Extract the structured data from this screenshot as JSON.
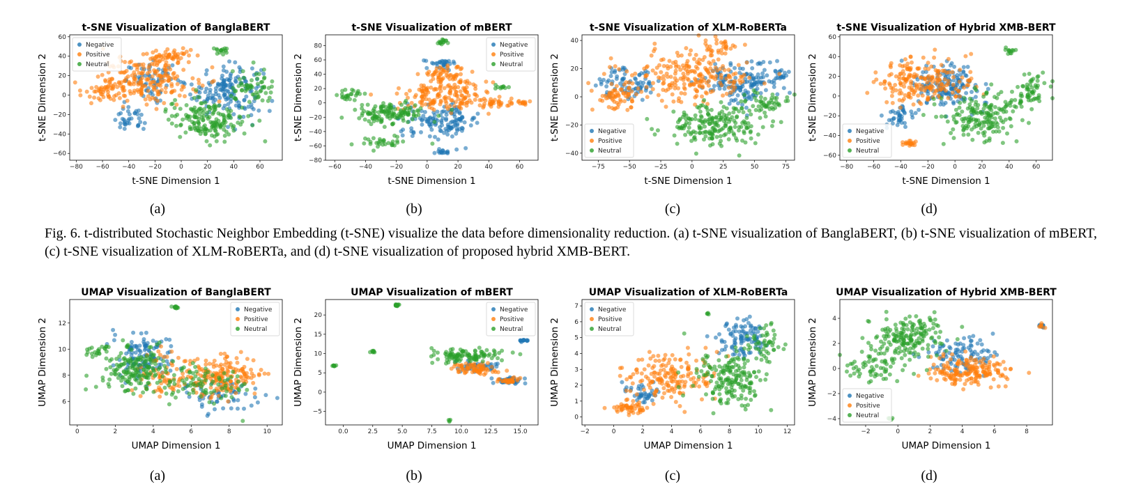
{
  "colors": {
    "negative": "#1f77b4",
    "positive": "#ff7f0e",
    "neutral": "#2ca02c"
  },
  "caption": "Fig. 6.  t-distributed Stochastic Neighbor Embedding (t-SNE) visualize the data before dimensionality reduction. (a) t-SNE visualization of BanglaBERT, (b) t-SNE visualization of mBERT, (c) t-SNE visualization of XLM-RoBERTa, and (d) t-SNE visualization of proposed hybrid XMB-BERT.",
  "sublabels_top": [
    "(a)",
    "(b)",
    "(c)",
    "(d)"
  ],
  "sublabels_bottom": [
    "(a)",
    "(b)",
    "(c)",
    "(d)"
  ],
  "chart_data": [
    {
      "type": "scatter",
      "title": "t-SNE Visualization of BanglaBERT",
      "xlabel": "t-SNE Dimension 1",
      "ylabel": "t-SNE Dimension 2",
      "xlim": [
        -85,
        77
      ],
      "ylim": [
        -67,
        62
      ],
      "xticks": [
        -80,
        -60,
        -40,
        -20,
        0,
        20,
        40,
        60
      ],
      "xtick_labels": [
        "−80",
        "−60",
        "−40",
        "−20",
        "0",
        "20",
        "40",
        "60"
      ],
      "yticks": [
        -60,
        -40,
        -20,
        0,
        20,
        40,
        60
      ],
      "ytick_labels": [
        "−60",
        "−40",
        "−20",
        "0",
        "20",
        "40",
        "60"
      ],
      "legend": [
        "Negative",
        "Positive",
        "Neutral"
      ],
      "legend_loc": "upper-left",
      "series": [
        {
          "name": "Negative",
          "clusters": [
            [
              35,
              5,
              22,
              22,
              160
            ],
            [
              -20,
              15,
              18,
              15,
              60
            ],
            [
              -40,
              -25,
              10,
              10,
              35
            ]
          ]
        },
        {
          "name": "Positive",
          "clusters": [
            [
              -25,
              15,
              30,
              20,
              200
            ],
            [
              -10,
              40,
              15,
              8,
              50
            ],
            [
              -60,
              5,
              12,
              10,
              40
            ]
          ]
        },
        {
          "name": "Neutral",
          "clusters": [
            [
              20,
              -25,
              25,
              18,
              170
            ],
            [
              55,
              5,
              15,
              15,
              60
            ],
            [
              30,
              45,
              5,
              3,
              15
            ]
          ]
        }
      ]
    },
    {
      "type": "scatter",
      "title": "t-SNE Visualization of mBERT",
      "xlabel": "t-SNE Dimension 1",
      "ylabel": "t-SNE Dimension 2",
      "xlim": [
        -66,
        72
      ],
      "ylim": [
        -80,
        95
      ],
      "xticks": [
        -60,
        -40,
        -20,
        0,
        20,
        40,
        60
      ],
      "xtick_labels": [
        "−60",
        "−40",
        "−20",
        "0",
        "20",
        "40",
        "60"
      ],
      "yticks": [
        -80,
        -60,
        -40,
        -20,
        0,
        20,
        40,
        60,
        80
      ],
      "ytick_labels": [
        "−80",
        "−60",
        "−40",
        "−20",
        "0",
        "20",
        "40",
        "60",
        "80"
      ],
      "legend": [
        "Negative",
        "Positive",
        "Neutral"
      ],
      "legend_loc": "upper-right",
      "series": [
        {
          "name": "Negative",
          "clusters": [
            [
              10,
              -25,
              20,
              18,
              130
            ],
            [
              10,
              55,
              10,
              6,
              30
            ],
            [
              10,
              -68,
              5,
              3,
              15
            ]
          ]
        },
        {
          "name": "Positive",
          "clusters": [
            [
              10,
              10,
              25,
              20,
              170
            ],
            [
              12,
              40,
              12,
              10,
              50
            ],
            [
              45,
              0,
              12,
              4,
              30
            ],
            [
              63,
              0,
              4,
              2,
              12
            ]
          ]
        },
        {
          "name": "Neutral",
          "clusters": [
            [
              -25,
              -15,
              18,
              14,
              130
            ],
            [
              -50,
              10,
              6,
              6,
              25
            ],
            [
              10,
              85,
              4,
              3,
              15
            ],
            [
              48,
              22,
              4,
              2,
              10
            ],
            [
              -30,
              -55,
              15,
              6,
              30
            ]
          ]
        }
      ]
    },
    {
      "type": "scatter",
      "title": "t-SNE Visualization of XLM-RoBERTa",
      "xlabel": "t-SNE Dimension 1",
      "ylabel": "t-SNE Dimension 2",
      "xlim": [
        -88,
        82
      ],
      "ylim": [
        -45,
        44
      ],
      "xticks": [
        -75,
        -50,
        -25,
        0,
        25,
        50,
        75
      ],
      "xtick_labels": [
        "−75",
        "−50",
        "−25",
        "0",
        "25",
        "50",
        "75"
      ],
      "yticks": [
        -40,
        -20,
        0,
        20,
        40
      ],
      "ytick_labels": [
        "−40",
        "−20",
        "0",
        "20",
        "40"
      ],
      "legend": [
        "Negative",
        "Positive",
        "Neutral"
      ],
      "legend_loc": "lower-left",
      "series": [
        {
          "name": "Negative",
          "clusters": [
            [
              40,
              10,
              25,
              12,
              150
            ],
            [
              -50,
              10,
              20,
              10,
              80
            ],
            [
              70,
              15,
              6,
              5,
              20
            ]
          ]
        },
        {
          "name": "Positive",
          "clusters": [
            [
              0,
              15,
              40,
              15,
              220
            ],
            [
              20,
              35,
              10,
              4,
              30
            ],
            [
              -60,
              0,
              15,
              8,
              60
            ]
          ]
        },
        {
          "name": "Neutral",
          "clusters": [
            [
              15,
              -20,
              30,
              12,
              200
            ],
            [
              60,
              -5,
              15,
              8,
              50
            ]
          ]
        }
      ]
    },
    {
      "type": "scatter",
      "title": "t-SNE Visualization of Hybrid XMB-BERT",
      "xlabel": "t-SNE Dimension 1",
      "ylabel": "t-SNE Dimension 2",
      "xlim": [
        -85,
        72
      ],
      "ylim": [
        -65,
        62
      ],
      "xticks": [
        -80,
        -60,
        -40,
        -20,
        0,
        20,
        40,
        60
      ],
      "xtick_labels": [
        "−80",
        "−60",
        "−40",
        "−20",
        "0",
        "20",
        "40",
        "60"
      ],
      "yticks": [
        -60,
        -40,
        -20,
        0,
        20,
        40,
        60
      ],
      "ytick_labels": [
        "−60",
        "−40",
        "−20",
        "0",
        "20",
        "40",
        "60"
      ],
      "legend": [
        "Negative",
        "Positive",
        "Neutral"
      ],
      "legend_loc": "lower-left",
      "series": [
        {
          "name": "Negative",
          "clusters": [
            [
              -5,
              10,
              20,
              20,
              160
            ],
            [
              -40,
              -20,
              10,
              10,
              40
            ]
          ]
        },
        {
          "name": "Positive",
          "clusters": [
            [
              -25,
              15,
              30,
              20,
              200
            ],
            [
              -35,
              -48,
              5,
              3,
              20
            ]
          ]
        },
        {
          "name": "Neutral",
          "clusters": [
            [
              20,
              -20,
              25,
              20,
              180
            ],
            [
              55,
              5,
              12,
              15,
              60
            ],
            [
              40,
              45,
              4,
              3,
              12
            ]
          ]
        }
      ]
    },
    {
      "type": "scatter",
      "title": "UMAP Visualization of BanglaBERT",
      "xlabel": "UMAP Dimension 1",
      "ylabel": "UMAP Dimension 2",
      "xlim": [
        -0.4,
        10.8
      ],
      "ylim": [
        4.2,
        13.8
      ],
      "xticks": [
        0,
        2,
        4,
        6,
        8,
        10
      ],
      "xtick_labels": [
        "0",
        "2",
        "4",
        "6",
        "8",
        "10"
      ],
      "yticks": [
        6,
        8,
        10,
        12
      ],
      "ytick_labels": [
        "6",
        "8",
        "10",
        "12"
      ],
      "legend": [
        "Negative",
        "Positive",
        "Neutral"
      ],
      "legend_loc": "upper-right",
      "series": [
        {
          "name": "Negative",
          "clusters": [
            [
              3.5,
              9.5,
              1.2,
              1.4,
              120
            ],
            [
              7.5,
              6.5,
              1.5,
              1.0,
              60
            ]
          ]
        },
        {
          "name": "Positive",
          "clusters": [
            [
              7.5,
              8,
              1.8,
              1.3,
              180
            ],
            [
              4.5,
              8,
              1,
              1.5,
              60
            ]
          ]
        },
        {
          "name": "Neutral",
          "clusters": [
            [
              3,
              8.5,
              1.5,
              1.5,
              170
            ],
            [
              6.5,
              7.5,
              2,
              1.2,
              80
            ],
            [
              5.2,
              13.2,
              0.15,
              0.08,
              12
            ],
            [
              1,
              10,
              0.5,
              0.4,
              20
            ]
          ]
        }
      ]
    },
    {
      "type": "scatter",
      "title": "UMAP Visualization of mBERT",
      "xlabel": "UMAP Dimension 1",
      "ylabel": "UMAP Dimension 2",
      "xlim": [
        -1.5,
        16.5
      ],
      "ylim": [
        -8.5,
        24
      ],
      "xticks": [
        0,
        2.5,
        5,
        7.5,
        10,
        12.5,
        15
      ],
      "xtick_labels": [
        "0.0",
        "2.5",
        "5.0",
        "7.5",
        "10.0",
        "12.5",
        "15.0"
      ],
      "yticks": [
        -5,
        0,
        5,
        10,
        15,
        20
      ],
      "ytick_labels": [
        "−5",
        "0",
        "5",
        "10",
        "15",
        "20"
      ],
      "legend": [
        "Negative",
        "Positive",
        "Neutral"
      ],
      "legend_loc": "upper-right",
      "series": [
        {
          "name": "Negative",
          "clusters": [
            [
              14,
              3,
              1,
              0.8,
              40
            ],
            [
              15.3,
              13.3,
              0.4,
              0.3,
              15
            ],
            [
              11.5,
              7,
              1.5,
              1.5,
              40
            ]
          ]
        },
        {
          "name": "Positive",
          "clusters": [
            [
              11,
              6,
              1.5,
              1.3,
              70
            ],
            [
              14,
              3,
              0.8,
              0.6,
              30
            ]
          ]
        },
        {
          "name": "Neutral",
          "clusters": [
            [
              10.5,
              9.5,
              2.5,
              1.5,
              110
            ],
            [
              4.5,
              22.5,
              0.25,
              0.2,
              15
            ],
            [
              2.5,
              10.5,
              0.15,
              0.2,
              8
            ],
            [
              -0.8,
              6.8,
              0.25,
              0.15,
              8
            ],
            [
              9,
              -7.5,
              0.1,
              0.2,
              4
            ]
          ]
        }
      ]
    },
    {
      "type": "scatter",
      "title": "UMAP Visualization of XLM-RoBERTa",
      "xlabel": "UMAP Dimension 1",
      "ylabel": "UMAP Dimension 2",
      "xlim": [
        -2.2,
        12.5
      ],
      "ylim": [
        -0.5,
        7.4
      ],
      "xticks": [
        -2,
        0,
        2,
        4,
        6,
        8,
        10,
        12
      ],
      "xtick_labels": [
        "−2",
        "0",
        "2",
        "4",
        "6",
        "8",
        "10",
        "12"
      ],
      "yticks": [
        0,
        1,
        2,
        3,
        4,
        5,
        6,
        7
      ],
      "ytick_labels": [
        "0",
        "1",
        "2",
        "3",
        "4",
        "5",
        "6",
        "7"
      ],
      "legend": [
        "Negative",
        "Positive",
        "Neutral"
      ],
      "legend_loc": "upper-left",
      "series": [
        {
          "name": "Negative",
          "clusters": [
            [
              9,
              5,
              1.5,
              1.2,
              100
            ],
            [
              2,
              1.5,
              1.2,
              0.5,
              40
            ]
          ]
        },
        {
          "name": "Positive",
          "clusters": [
            [
              4,
              2.5,
              2.5,
              1.2,
              170
            ],
            [
              1,
              0.6,
              1,
              0.3,
              50
            ]
          ]
        },
        {
          "name": "Neutral",
          "clusters": [
            [
              8,
              2.5,
              2,
              1.5,
              180
            ],
            [
              10.5,
              4.5,
              1,
              1,
              50
            ],
            [
              6.5,
              6.5,
              0.1,
              0.1,
              4
            ]
          ]
        }
      ]
    },
    {
      "type": "scatter",
      "title": "UMAP Visualization of Hybrid XMB-BERT",
      "xlabel": "UMAP Dimension 1",
      "ylabel": "UMAP Dimension 2",
      "xlim": [
        -3.6,
        9.6
      ],
      "ylim": [
        -4.5,
        5.5
      ],
      "xticks": [
        -2,
        0,
        2,
        4,
        6,
        8
      ],
      "xtick_labels": [
        "−2",
        "0",
        "2",
        "4",
        "6",
        "8"
      ],
      "yticks": [
        -4,
        -2,
        0,
        2,
        4
      ],
      "ytick_labels": [
        "−4",
        "−2",
        "0",
        "2",
        "4"
      ],
      "legend": [
        "Negative",
        "Positive",
        "Neutral"
      ],
      "legend_loc": "lower-left",
      "series": [
        {
          "name": "Negative",
          "clusters": [
            [
              4,
              1,
              2,
              1.2,
              100
            ],
            [
              8.9,
              3.4,
              0.15,
              0.15,
              8
            ]
          ]
        },
        {
          "name": "Positive",
          "clusters": [
            [
              4.5,
              -0.2,
              2,
              1,
              180
            ],
            [
              8.9,
              3.4,
              0.15,
              0.15,
              6
            ]
          ]
        },
        {
          "name": "Neutral",
          "clusters": [
            [
              0.5,
              2.5,
              2,
              1.5,
              180
            ],
            [
              -1.5,
              0,
              1.5,
              1,
              60
            ],
            [
              -0.5,
              -4,
              0.15,
              0.1,
              6
            ]
          ]
        }
      ]
    }
  ]
}
